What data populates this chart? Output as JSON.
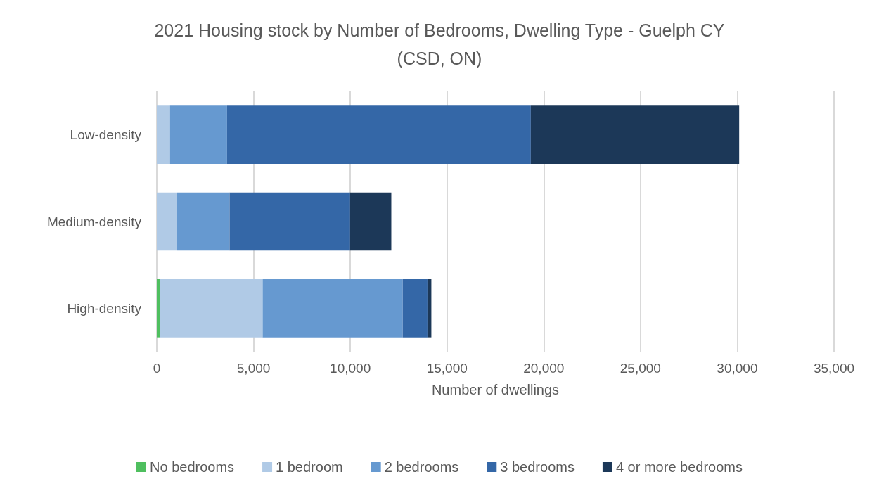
{
  "chart_data": {
    "type": "bar",
    "orientation": "horizontal",
    "stacked": true,
    "title": "2021 Housing stock by Number of Bedrooms, Dwelling Type - Guelph CY\n(CSD, ON)",
    "xlabel": "Number of dwellings",
    "categories": [
      "Low-density",
      "Medium-density",
      "High-density"
    ],
    "series": [
      {
        "name": "No bedrooms",
        "color": "#4fbf5f",
        "values": [
          null,
          0,
          150
        ]
      },
      {
        "name": "1 bedroom",
        "color": "#b0cae6",
        "values": [
          680,
          1050,
          5320
        ]
      },
      {
        "name": "2 bedrooms",
        "color": "#6699d0",
        "values": [
          2950,
          2710,
          7240
        ]
      },
      {
        "name": "3 bedrooms",
        "color": "#3467a7",
        "values": [
          15700,
          6230,
          1280
        ]
      },
      {
        "name": "4 or more bedrooms",
        "color": "#1c3858",
        "values": [
          10770,
          2130,
          200
        ]
      }
    ],
    "xlim": [
      0,
      35000
    ],
    "xticks": [
      0,
      {
        "value": 5000,
        "label": "5,000"
      },
      {
        "value": 10000,
        "label": "10,000"
      },
      {
        "value": 15000,
        "label": "15,000"
      },
      {
        "value": 20000,
        "label": "20,000"
      },
      {
        "value": 25000,
        "label": "25,000"
      },
      {
        "value": 30000,
        "label": "30,000"
      },
      {
        "value": 35000,
        "label": "35,000"
      }
    ],
    "grid": "x",
    "legend": "bottom"
  }
}
